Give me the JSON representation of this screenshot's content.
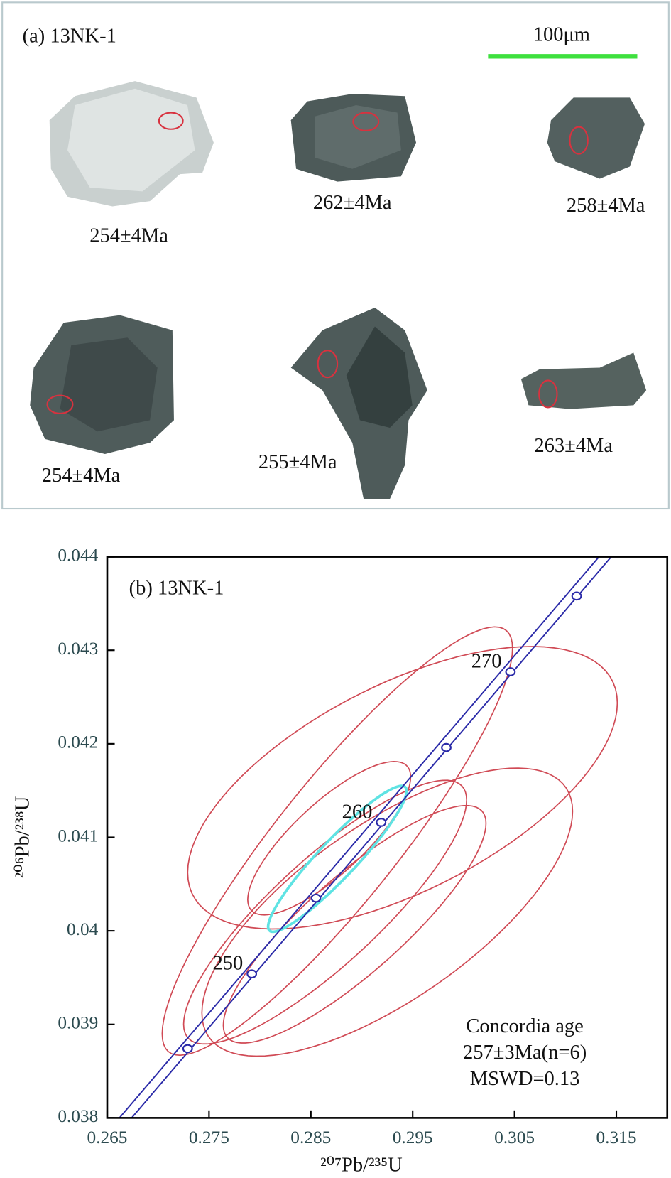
{
  "panel_a": {
    "label": "(a) 13NK-1",
    "scale_bar": "100μm",
    "grains": [
      "254±4Ma",
      "262±4Ma",
      "258±4Ma",
      "254±4Ma",
      "255±4Ma",
      "263±4Ma"
    ]
  },
  "chart_data": {
    "type": "concordia",
    "title": "(b) 13NK-1",
    "x_label": "²⁰⁷Pb/²³⁵U",
    "y_label": "²⁰⁶Pb/²³⁸U",
    "xlim": [
      0.265,
      0.32
    ],
    "ylim": [
      0.038,
      0.044
    ],
    "xticks": [
      0.265,
      0.275,
      0.285,
      0.295,
      0.305,
      0.315
    ],
    "yticks": [
      0.038,
      0.039,
      0.04,
      0.041,
      0.042,
      0.043,
      0.044
    ],
    "ellipse_color": "#d04a55",
    "ellipses": [
      {
        "x": 0.294,
        "y": 0.04153,
        "x_err": 0.0211,
        "y_err": 0.00151,
        "rho": 0.6
      },
      {
        "x": 0.2925,
        "y": 0.0402,
        "x_err": 0.0182,
        "y_err": 0.00154,
        "rho": 0.7
      },
      {
        "x": 0.2876,
        "y": 0.04096,
        "x_err": 0.0172,
        "y_err": 0.00229,
        "rho": 0.9
      },
      {
        "x": 0.2893,
        "y": 0.04007,
        "x_err": 0.0129,
        "y_err": 0.00127,
        "rho": 0.85
      },
      {
        "x": 0.2868,
        "y": 0.04099,
        "x_err": 0.008,
        "y_err": 0.00082,
        "rho": 0.8
      },
      {
        "x": 0.2864,
        "y": 0.0402,
        "x_err": 0.0139,
        "y_err": 0.00141,
        "rho": 0.85
      }
    ],
    "mean_ellipse": {
      "x": 0.2876,
      "y": 0.04077,
      "x_err": 0.0068,
      "y_err": 0.00078,
      "rho": 0.93,
      "color": "#5fe3e3"
    },
    "concordia": {
      "color": "#2a2aa8",
      "lines": [
        {
          "x": [
            0.2662,
            0.3133
          ],
          "y": [
            0.038,
            0.044
          ]
        },
        {
          "x": [
            0.2674,
            0.3145
          ],
          "y": [
            0.038,
            0.044
          ]
        }
      ],
      "markers": {
        "x": [
          0.2729,
          0.2792,
          0.2855,
          0.2919,
          0.2983,
          0.3046,
          0.3111
        ],
        "y": [
          0.03874,
          0.03954,
          0.04035,
          0.04116,
          0.04196,
          0.04277,
          0.04358
        ],
        "labels": [
          null,
          250,
          null,
          260,
          null,
          270,
          null
        ]
      }
    },
    "annotation": [
      "Concordia age",
      "257±3Ma(n=6)",
      "MSWD=0.13"
    ]
  }
}
